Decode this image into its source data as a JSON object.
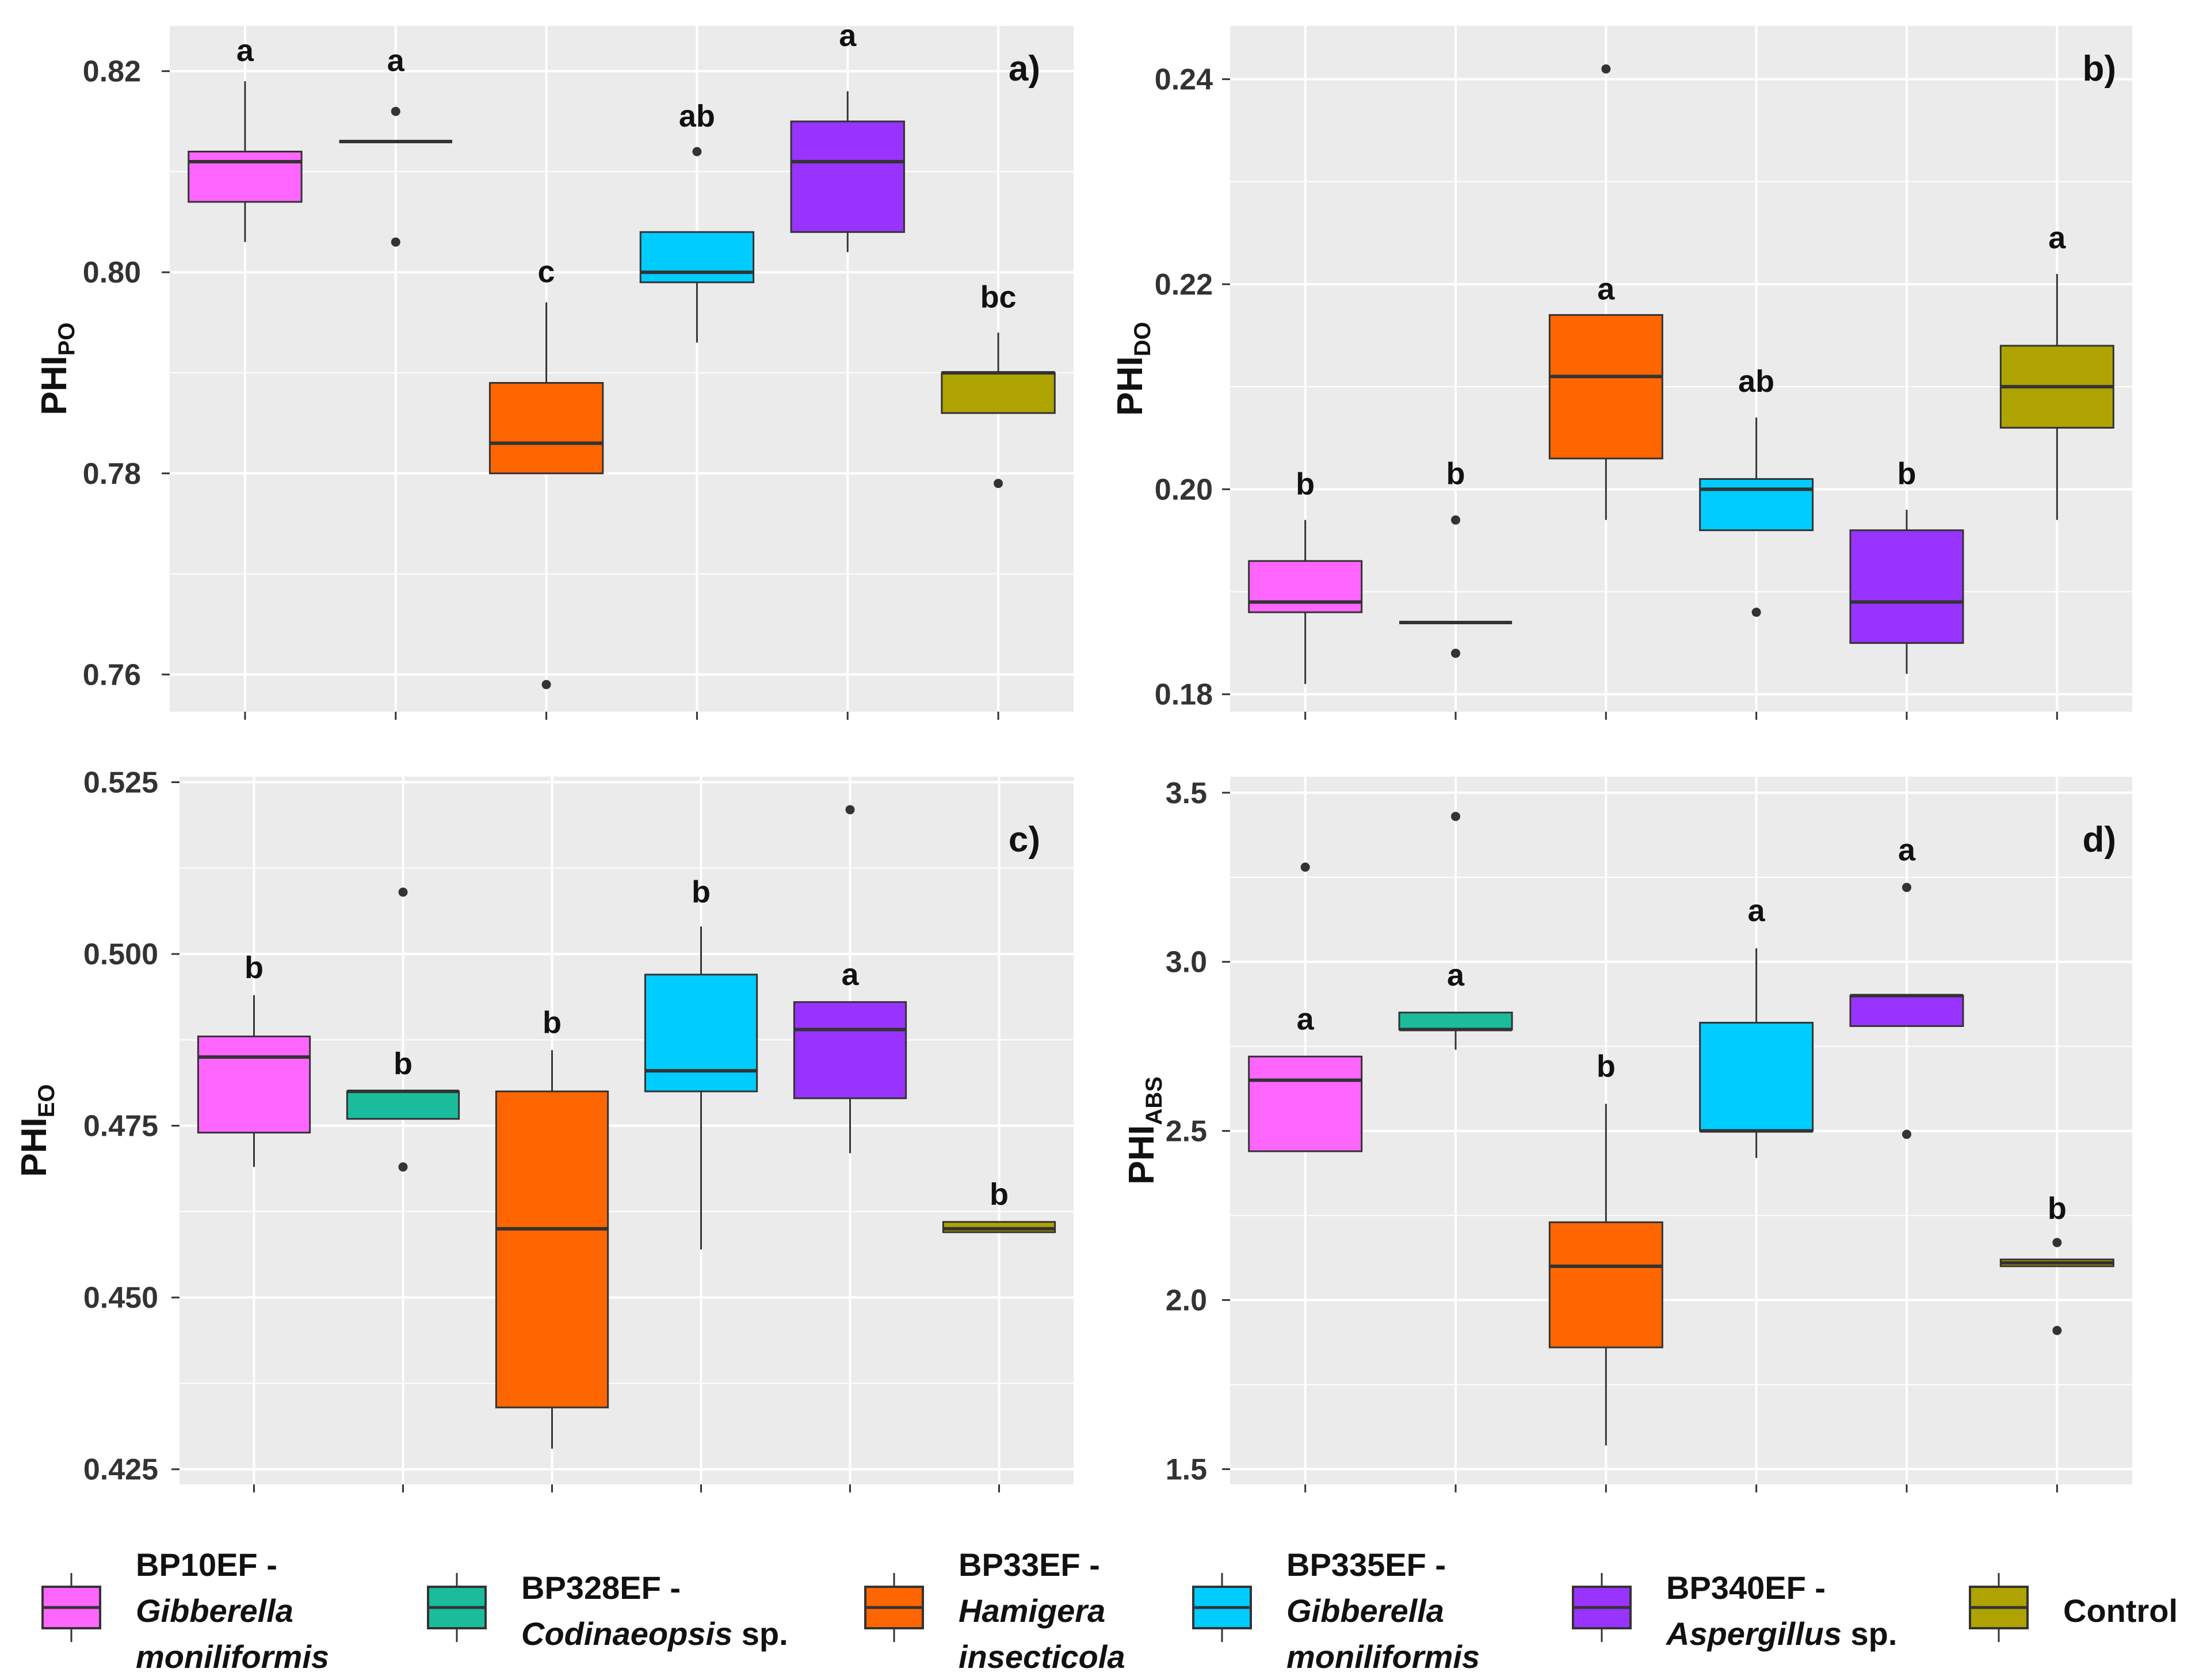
{
  "colors": {
    "panel_bg": "#EBEBEB",
    "grid": "#FFFFFF",
    "axis_text": "#333333",
    "groups": [
      "#FF66FF",
      "#1ABC9C",
      "#FF6600",
      "#00CCFF",
      "#9933FF",
      "#AEA300"
    ]
  },
  "legend": {
    "items": [
      {
        "code": "BP10EF -",
        "species": "Gibberella moniliformis",
        "species_line1": "Gibberella",
        "species_line2": "moniliformis",
        "suffix": ""
      },
      {
        "code": "BP328EF -",
        "species": "Codinaeopsis",
        "species_line1": "Codinaeopsis",
        "species_line2": "",
        "suffix": " sp."
      },
      {
        "code": "BP33EF -",
        "species": "Hamigera insecticola",
        "species_line1": "Hamigera",
        "species_line2": "insecticola",
        "suffix": ""
      },
      {
        "code": "BP335EF -",
        "species": "Gibberella moniliformis",
        "species_line1": "Gibberella",
        "species_line2": "moniliformis",
        "suffix": ""
      },
      {
        "code": "BP340EF -",
        "species": "Aspergillus",
        "species_line1": "Aspergillus",
        "species_line2": "",
        "suffix": " sp."
      },
      {
        "code": "Control",
        "species": "",
        "species_line1": "",
        "species_line2": "",
        "suffix": ""
      }
    ]
  },
  "chart_data": [
    {
      "type": "box",
      "panel_label": "a)",
      "ylabel_main": "PHI",
      "ylabel_sub": "PO",
      "ylim": [
        0.7563,
        0.8245
      ],
      "yticks": [
        0.76,
        0.78,
        0.8,
        0.82
      ],
      "ytick_labels": [
        "0.76",
        "0.78",
        "0.80",
        "0.82"
      ],
      "ygrid_minor": [
        0.77,
        0.79,
        0.81
      ],
      "categories": [
        "BP10EF",
        "BP328EF",
        "BP33EF",
        "BP335EF",
        "BP340EF",
        "Control"
      ],
      "boxes": [
        {
          "q1": 0.807,
          "median": 0.811,
          "q3": 0.812,
          "whisker_low": 0.803,
          "whisker_high": 0.819,
          "outliers": []
        },
        {
          "q1": 0.813,
          "median": 0.813,
          "q3": 0.813,
          "whisker_low": 0.813,
          "whisker_high": 0.813,
          "outliers": [
            0.816,
            0.803
          ]
        },
        {
          "q1": 0.78,
          "median": 0.783,
          "q3": 0.789,
          "whisker_low": 0.78,
          "whisker_high": 0.797,
          "outliers": [
            0.759
          ]
        },
        {
          "q1": 0.799,
          "median": 0.8,
          "q3": 0.804,
          "whisker_low": 0.793,
          "whisker_high": 0.804,
          "outliers": [
            0.812
          ]
        },
        {
          "q1": 0.804,
          "median": 0.811,
          "q3": 0.815,
          "whisker_low": 0.802,
          "whisker_high": 0.818,
          "outliers": []
        },
        {
          "q1": 0.786,
          "median": 0.79,
          "q3": 0.79,
          "whisker_low": 0.786,
          "whisker_high": 0.794,
          "outliers": [
            0.779
          ]
        }
      ],
      "letters": [
        "a",
        "a",
        "c",
        "ab",
        "a",
        "bc"
      ],
      "letter_y": [
        0.821,
        0.82,
        0.799,
        0.8145,
        0.8225,
        0.7965
      ]
    },
    {
      "type": "box",
      "panel_label": "b)",
      "ylabel_main": "PHI",
      "ylabel_sub": "DO",
      "ylim": [
        0.1783,
        0.2452
      ],
      "yticks": [
        0.18,
        0.2,
        0.22,
        0.24
      ],
      "ytick_labels": [
        "0.18",
        "0.20",
        "0.22",
        "0.24"
      ],
      "ygrid_minor": [
        0.19,
        0.21,
        0.23
      ],
      "categories": [
        "BP10EF",
        "BP328EF",
        "BP33EF",
        "BP335EF",
        "BP340EF",
        "Control"
      ],
      "boxes": [
        {
          "q1": 0.188,
          "median": 0.189,
          "q3": 0.193,
          "whisker_low": 0.181,
          "whisker_high": 0.197,
          "outliers": []
        },
        {
          "q1": 0.187,
          "median": 0.187,
          "q3": 0.187,
          "whisker_low": 0.187,
          "whisker_high": 0.187,
          "outliers": [
            0.197,
            0.184
          ]
        },
        {
          "q1": 0.203,
          "median": 0.211,
          "q3": 0.217,
          "whisker_low": 0.197,
          "whisker_high": 0.217,
          "outliers": [
            0.241
          ]
        },
        {
          "q1": 0.196,
          "median": 0.2,
          "q3": 0.201,
          "whisker_low": 0.196,
          "whisker_high": 0.207,
          "outliers": [
            0.188
          ]
        },
        {
          "q1": 0.185,
          "median": 0.189,
          "q3": 0.196,
          "whisker_low": 0.182,
          "whisker_high": 0.198,
          "outliers": []
        },
        {
          "q1": 0.206,
          "median": 0.21,
          "q3": 0.214,
          "whisker_low": 0.197,
          "whisker_high": 0.221,
          "outliers": []
        }
      ],
      "letters": [
        "b",
        "b",
        "a",
        "ab",
        "b",
        "a"
      ],
      "letter_y": [
        0.1995,
        0.2005,
        0.2185,
        0.2095,
        0.2005,
        0.2235
      ]
    },
    {
      "type": "box",
      "panel_label": "c)",
      "ylabel_main": "PHI",
      "ylabel_sub": "EO",
      "ylim": [
        0.4228,
        0.5258
      ],
      "yticks": [
        0.425,
        0.45,
        0.475,
        0.5,
        0.525
      ],
      "ytick_labels": [
        "0.425",
        "0.450",
        "0.475",
        "0.500",
        "0.525"
      ],
      "ygrid_minor": [
        0.4375,
        0.4625,
        0.4875,
        0.5125
      ],
      "categories": [
        "BP10EF",
        "BP328EF",
        "BP33EF",
        "BP335EF",
        "BP340EF",
        "Control"
      ],
      "boxes": [
        {
          "q1": 0.474,
          "median": 0.485,
          "q3": 0.488,
          "whisker_low": 0.469,
          "whisker_high": 0.494,
          "outliers": []
        },
        {
          "q1": 0.476,
          "median": 0.48,
          "q3": 0.48,
          "whisker_low": 0.476,
          "whisker_high": 0.48,
          "outliers": [
            0.509,
            0.469
          ]
        },
        {
          "q1": 0.434,
          "median": 0.46,
          "q3": 0.48,
          "whisker_low": 0.428,
          "whisker_high": 0.486,
          "outliers": []
        },
        {
          "q1": 0.48,
          "median": 0.483,
          "q3": 0.497,
          "whisker_low": 0.457,
          "whisker_high": 0.504,
          "outliers": []
        },
        {
          "q1": 0.479,
          "median": 0.489,
          "q3": 0.493,
          "whisker_low": 0.471,
          "whisker_high": 0.493,
          "outliers": [
            0.521
          ]
        },
        {
          "q1": 0.4595,
          "median": 0.46,
          "q3": 0.461,
          "whisker_low": 0.4595,
          "whisker_high": 0.461,
          "outliers": []
        }
      ],
      "letters": [
        "b",
        "b",
        "b",
        "b",
        "a",
        "b"
      ],
      "letter_y": [
        0.4965,
        0.4825,
        0.4885,
        0.5075,
        0.4955,
        0.4635
      ]
    },
    {
      "type": "box",
      "panel_label": "d)",
      "ylabel_main": "PHI",
      "ylabel_sub": "ABS",
      "ylim": [
        1.455,
        3.5473
      ],
      "yticks": [
        1.5,
        2.0,
        2.5,
        3.0,
        3.5
      ],
      "ytick_labels": [
        "1.5",
        "2.0",
        "2.5",
        "3.0",
        "3.5"
      ],
      "ygrid_minor": [
        1.75,
        2.25,
        2.75,
        3.25
      ],
      "categories": [
        "BP10EF",
        "BP328EF",
        "BP33EF",
        "BP335EF",
        "BP340EF",
        "Control"
      ],
      "boxes": [
        {
          "q1": 2.44,
          "median": 2.65,
          "q3": 2.72,
          "whisker_low": 2.44,
          "whisker_high": 2.72,
          "outliers": [
            3.28
          ]
        },
        {
          "q1": 2.8,
          "median": 2.8,
          "q3": 2.85,
          "whisker_low": 2.74,
          "whisker_high": 2.85,
          "outliers": [
            3.43
          ]
        },
        {
          "q1": 1.86,
          "median": 2.1,
          "q3": 2.23,
          "whisker_low": 1.57,
          "whisker_high": 2.58,
          "outliers": []
        },
        {
          "q1": 2.5,
          "median": 2.5,
          "q3": 2.82,
          "whisker_low": 2.42,
          "whisker_high": 3.04,
          "outliers": []
        },
        {
          "q1": 2.81,
          "median": 2.9,
          "q3": 2.9,
          "whisker_low": 2.81,
          "whisker_high": 2.9,
          "outliers": [
            3.22,
            2.49
          ]
        },
        {
          "q1": 2.1,
          "median": 2.11,
          "q3": 2.12,
          "whisker_low": 2.1,
          "whisker_high": 2.12,
          "outliers": [
            2.17,
            1.91
          ]
        }
      ],
      "letters": [
        "a",
        "a",
        "b",
        "a",
        "a",
        "b"
      ],
      "letter_y": [
        2.8,
        2.93,
        2.66,
        3.12,
        3.3,
        2.24
      ]
    }
  ]
}
